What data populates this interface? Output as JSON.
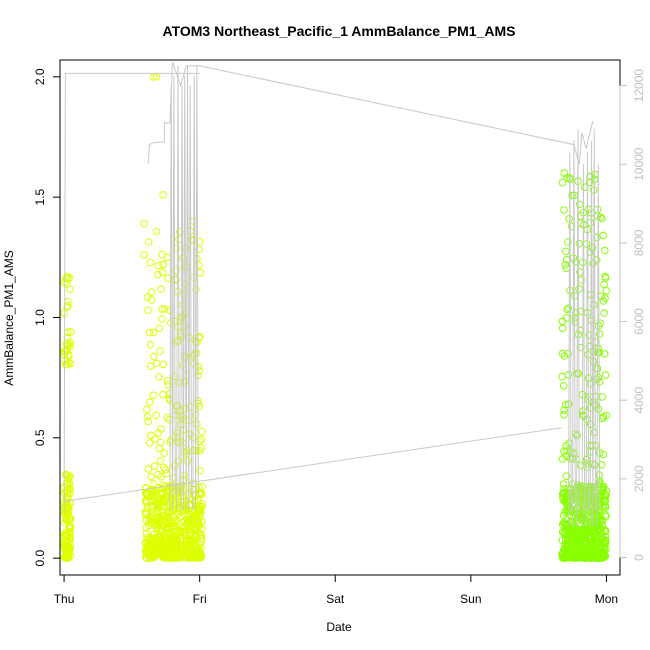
{
  "chart_data": {
    "type": "scatter",
    "title": "ATOM3 Northeast_Pacific_1 AmmBalance_PM1_AMS",
    "xlabel": "Date",
    "ylabel": "AmmBalance_PM1_AMS",
    "x_ticks": [
      "Thu",
      "Fri",
      "Sat",
      "Sun",
      "Mon"
    ],
    "xlim_days": [
      -0.03,
      4.1
    ],
    "ylim": [
      -0.07,
      2.07
    ],
    "y_ticks": [
      "0.0",
      "0.5",
      "1.0",
      "1.5",
      "2.0"
    ],
    "y_right_ticks": [
      "0",
      "2000",
      "4000",
      "6000",
      "8000",
      "10000",
      "12000"
    ],
    "y_right_lim": [
      -445,
      12650
    ],
    "grid": false,
    "legend": "none",
    "colors": {
      "early": "#ddff00",
      "late": "#88ff00",
      "altitude_line": "#c8c8c8",
      "right_axis": "#c0c0c0"
    },
    "series": [
      {
        "kind": "points",
        "clusters": [
          {
            "day_start": 0.0,
            "day_end": 0.05,
            "y_base": [
              0.0,
              0.35
            ],
            "high": [
              0.8,
              1.17
            ],
            "count": 140,
            "color": "early"
          },
          {
            "day_start": 0.6,
            "day_end": 1.02,
            "y_base": [
              0.0,
              0.3
            ],
            "high": [
              0.3,
              1.4
            ],
            "count": 700,
            "color": "early"
          },
          {
            "day_start": 3.67,
            "day_end": 4.0,
            "y_base": [
              0.0,
              0.3
            ],
            "high": [
              0.3,
              1.6
            ],
            "count": 700,
            "color": "late"
          }
        ],
        "extra_points": [
          {
            "day": 0.66,
            "y": 2.0
          },
          {
            "day": 0.68,
            "y": 2.0
          },
          {
            "day": 0.59,
            "y": 1.39
          },
          {
            "day": 0.59,
            "y": 1.26
          },
          {
            "day": 0.73,
            "y": 1.51
          },
          {
            "day": 0.73,
            "y": 1.22
          },
          {
            "day": 0.02,
            "y": 1.17
          },
          {
            "day": 0.02,
            "y": 1.14
          },
          {
            "day": 3.69,
            "y": 1.6
          },
          {
            "day": 3.71,
            "y": 1.58
          },
          {
            "day": 3.99,
            "y": 1.17
          },
          {
            "day": 3.99,
            "y": 1.08
          },
          {
            "day": 3.69,
            "y": 0.84
          },
          {
            "day": 3.94,
            "y": 0.87
          }
        ]
      },
      {
        "kind": "line",
        "axis": "right",
        "name": "",
        "path": [
          [
            0.0,
            1130
          ],
          [
            0.01,
            12310
          ],
          [
            1.0,
            12310
          ],
          [
            0.62,
            10000
          ],
          [
            0.63,
            10500
          ],
          [
            0.66,
            10550
          ],
          [
            0.74,
            10570
          ],
          [
            0.74,
            11050
          ],
          [
            0.78,
            11050
          ],
          [
            0.8,
            12600
          ],
          [
            0.86,
            12000
          ],
          [
            0.9,
            12500
          ],
          [
            1.0,
            12500
          ],
          [
            3.76,
            10500
          ],
          [
            3.8,
            10000
          ],
          [
            3.82,
            10800
          ],
          [
            3.85,
            10400
          ],
          [
            3.9,
            11100
          ],
          [
            4.0,
            10800
          ],
          [
            0.0,
            1430
          ],
          [
            3.67,
            3300
          ]
        ]
      }
    ]
  }
}
